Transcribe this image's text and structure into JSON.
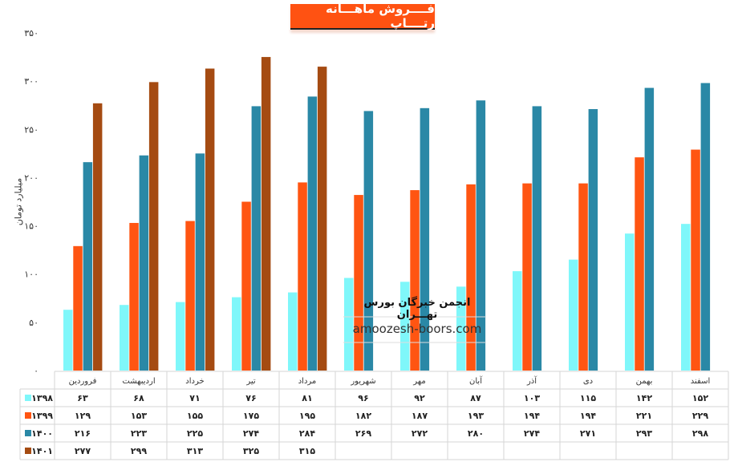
{
  "chart_data": {
    "type": "bar",
    "title": "فــــروش ماهـــانه رتــــاپ",
    "ylabel": "میلیارد تومان",
    "ylim": [
      0,
      350
    ],
    "yticks": [
      0,
      50,
      100,
      150,
      200,
      250,
      300,
      350
    ],
    "ytick_labels": [
      "۰",
      "۵۰",
      "۱۰۰",
      "۱۵۰",
      "۲۰۰",
      "۲۵۰",
      "۳۰۰",
      "۳۵۰"
    ],
    "grid": false,
    "legend": "data-table-left",
    "categories": [
      "فروردین",
      "اردیبهشت",
      "خرداد",
      "تیر",
      "مرداد",
      "شهریور",
      "مهر",
      "آبان",
      "آذر",
      "دی",
      "بهمن",
      "اسفند"
    ],
    "series": [
      {
        "name": "۱۳۹۸",
        "color": "#7ff7fa",
        "values": [
          63,
          68,
          71,
          76,
          81,
          96,
          92,
          87,
          103,
          115,
          142,
          152
        ]
      },
      {
        "name": "۱۳۹۹",
        "color": "#ff5512",
        "values": [
          129,
          153,
          155,
          175,
          195,
          182,
          187,
          193,
          194,
          194,
          221,
          229
        ]
      },
      {
        "name": "۱۴۰۰",
        "color": "#2a88a6",
        "values": [
          216,
          223,
          225,
          274,
          284,
          269,
          272,
          280,
          274,
          271,
          293,
          298
        ]
      },
      {
        "name": "۱۴۰۱",
        "color": "#a54b12",
        "values": [
          277,
          299,
          313,
          325,
          315,
          null,
          null,
          null,
          null,
          null,
          null,
          null
        ]
      }
    ]
  },
  "watermark": {
    "text": "انجمن خبرگان بورس تهـــران",
    "site": "amoozesh-boors.com"
  }
}
